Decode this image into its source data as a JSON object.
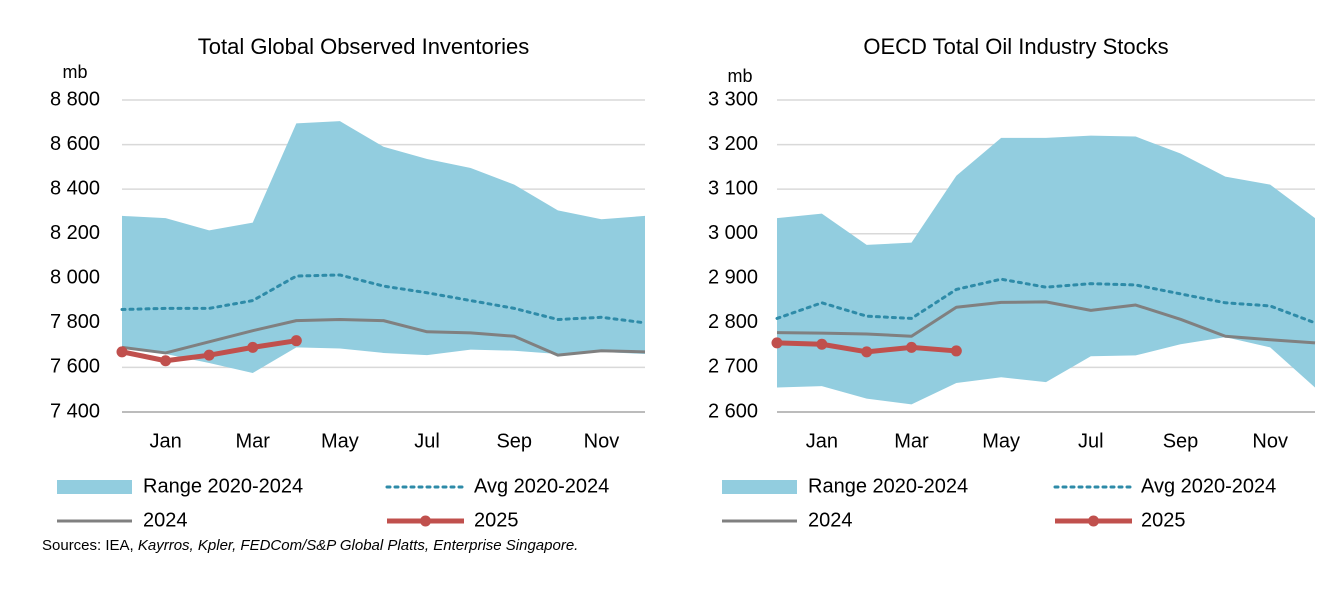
{
  "chart_data": [
    {
      "type": "line",
      "title": "Total Global Observed Inventories",
      "y_label": "mb",
      "categories": [
        null,
        "Jan",
        null,
        "Mar",
        null,
        "May",
        null,
        "Jul",
        null,
        "Sep",
        null,
        "Nov",
        null
      ],
      "ylim": [
        7400,
        8800
      ],
      "yticks": [
        {
          "value": 7400,
          "label": "7 400"
        },
        {
          "value": 7600,
          "label": "7 600"
        },
        {
          "value": 7800,
          "label": "7 800"
        },
        {
          "value": 8000,
          "label": "8 000"
        },
        {
          "value": 8200,
          "label": "8 200"
        },
        {
          "value": 8400,
          "label": "8 400"
        },
        {
          "value": 8600,
          "label": "8 600"
        },
        {
          "value": 8800,
          "label": "8 800"
        }
      ],
      "grid": true,
      "series": [
        {
          "name": "Range 2020-2024",
          "kind": "range",
          "color": "#92cddf",
          "values": [
            8280,
            8270,
            8215,
            8250,
            8695,
            8705,
            8590,
            8535,
            8495,
            8420,
            8305,
            8265,
            8280
          ],
          "low": [
            7690,
            7660,
            7620,
            7575,
            7690,
            7685,
            7665,
            7655,
            7680,
            7675,
            7660,
            7670,
            7660
          ]
        },
        {
          "name": "Avg 2020-2024",
          "kind": "dotted",
          "color": "#2e8ba8",
          "values": [
            7860,
            7865,
            7865,
            7900,
            8010,
            8015,
            7965,
            7935,
            7900,
            7865,
            7815,
            7825,
            7800
          ]
        },
        {
          "name": "2024",
          "kind": "line",
          "color": "#808080",
          "values": [
            7690,
            7665,
            7715,
            7765,
            7810,
            7815,
            7810,
            7760,
            7755,
            7740,
            7655,
            7675,
            7670
          ]
        },
        {
          "name": "2025",
          "kind": "markers",
          "color": "#c0504d",
          "values": [
            7670,
            7630,
            7655,
            7690,
            7720,
            null,
            null,
            null,
            null,
            null,
            null,
            null,
            null
          ]
        }
      ],
      "sources": [
        "Sources: IEA, ",
        "Kayrros, Kpler, FEDCom/S&P Global Platts, Enterprise Singapore."
      ]
    },
    {
      "type": "line",
      "title": "OECD Total Oil Industry Stocks",
      "y_label": "mb",
      "categories": [
        null,
        "Jan",
        null,
        "Mar",
        null,
        "May",
        null,
        "Jul",
        null,
        "Sep",
        null,
        "Nov",
        null
      ],
      "ylim": [
        2600,
        3300
      ],
      "yticks": [
        {
          "value": 2600,
          "label": "2 600"
        },
        {
          "value": 2700,
          "label": "2 700"
        },
        {
          "value": 2800,
          "label": "2 800"
        },
        {
          "value": 2900,
          "label": "2 900"
        },
        {
          "value": 3000,
          "label": "3 000"
        },
        {
          "value": 3100,
          "label": "3 100"
        },
        {
          "value": 3200,
          "label": "3 200"
        },
        {
          "value": 3300,
          "label": "3 300"
        }
      ],
      "grid": true,
      "series": [
        {
          "name": "Range 2020-2024",
          "kind": "range",
          "color": "#92cddf",
          "values": [
            3035,
            3045,
            2975,
            2980,
            3130,
            3215,
            3215,
            3220,
            3218,
            3180,
            3128,
            3110,
            3035
          ],
          "low": [
            2655,
            2658,
            2630,
            2617,
            2665,
            2678,
            2667,
            2725,
            2727,
            2752,
            2768,
            2745,
            2655
          ]
        },
        {
          "name": "Avg 2020-2024",
          "kind": "dotted",
          "color": "#2e8ba8",
          "values": [
            2810,
            2845,
            2815,
            2810,
            2875,
            2898,
            2880,
            2888,
            2885,
            2865,
            2845,
            2838,
            2800
          ]
        },
        {
          "name": "2024",
          "kind": "line",
          "color": "#808080",
          "values": [
            2778,
            2777,
            2775,
            2770,
            2835,
            2846,
            2847,
            2828,
            2840,
            2808,
            2770,
            2762,
            2755
          ]
        },
        {
          "name": "2025",
          "kind": "markers",
          "color": "#c0504d",
          "values": [
            2755,
            2752,
            2735,
            2745,
            2737,
            null,
            null,
            null,
            null,
            null,
            null,
            null,
            null
          ]
        }
      ]
    }
  ]
}
